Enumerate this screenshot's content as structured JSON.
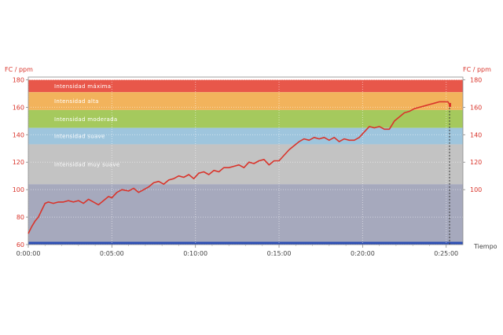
{
  "chart_data": {
    "type": "line",
    "title": "",
    "ylabel_left": "FC / ppm",
    "ylabel_right": "FC / ppm",
    "xlabel": "Tiempo",
    "ylim": [
      60,
      182
    ],
    "xlim_minutes": [
      0,
      26.0
    ],
    "y_ticks_left": [
      60,
      80,
      100,
      120,
      140,
      160,
      180
    ],
    "y_ticks_right": [
      100,
      120,
      140,
      160,
      180
    ],
    "x_ticks": [
      {
        "value": 0,
        "label": "0:00:00"
      },
      {
        "value": 5,
        "label": "0:05:00"
      },
      {
        "value": 10,
        "label": "0:10:00"
      },
      {
        "value": 15,
        "label": "0:15:00"
      },
      {
        "value": 20,
        "label": "0:20:00"
      },
      {
        "value": 25,
        "label": "0:25:00"
      }
    ],
    "grid": true,
    "zones": [
      {
        "label": "Intensidad máxima",
        "from": 171,
        "to": 180,
        "color": "#e8574a"
      },
      {
        "label": "Intensidad alta",
        "from": 158,
        "to": 171,
        "color": "#f2b35c"
      },
      {
        "label": "Intensidad moderada",
        "from": 145,
        "to": 158,
        "color": "#a5c95d"
      },
      {
        "label": "Intensidad suave",
        "from": 133,
        "to": 145,
        "color": "#9ec5dd"
      },
      {
        "label": "Intensidad muy suave",
        "from": 104,
        "to": 133,
        "color": "#c3c3c3"
      },
      {
        "label": "",
        "from": 62,
        "to": 104,
        "color": "#a6a9bd"
      }
    ],
    "series": [
      {
        "color": "#d9342b",
        "x": [
          0,
          0.2,
          0.4,
          0.6,
          0.8,
          1.0,
          1.2,
          1.5,
          1.8,
          2.1,
          2.4,
          2.7,
          3.0,
          3.3,
          3.6,
          3.9,
          4.2,
          4.5,
          4.8,
          5.0,
          5.3,
          5.6,
          6.0,
          6.3,
          6.6,
          6.9,
          7.2,
          7.5,
          7.8,
          8.1,
          8.4,
          8.7,
          9.0,
          9.3,
          9.6,
          9.9,
          10.2,
          10.5,
          10.8,
          11.1,
          11.4,
          11.7,
          12.0,
          12.3,
          12.6,
          12.9,
          13.2,
          13.5,
          13.8,
          14.1,
          14.4,
          14.7,
          15.0,
          15.3,
          15.6,
          15.9,
          16.2,
          16.5,
          16.8,
          17.1,
          17.4,
          17.7,
          18.0,
          18.3,
          18.6,
          18.9,
          19.2,
          19.5,
          19.8,
          20.1,
          20.4,
          20.7,
          21.0,
          21.3,
          21.6,
          21.9,
          22.2,
          22.5,
          22.8,
          23.1,
          23.4,
          23.7,
          24.0,
          24.3,
          24.6,
          24.9,
          25.1,
          25.2
        ],
        "values": [
          68,
          73,
          77,
          80,
          85,
          90,
          91,
          90,
          91,
          91,
          92,
          91,
          92,
          90,
          93,
          91,
          89,
          92,
          95,
          94,
          98,
          100,
          99,
          101,
          98,
          100,
          102,
          105,
          106,
          104,
          107,
          108,
          110,
          109,
          111,
          108,
          112,
          113,
          111,
          114,
          113,
          116,
          116,
          117,
          118,
          116,
          120,
          119,
          121,
          122,
          118,
          121,
          121,
          125,
          129,
          132,
          135,
          137,
          136,
          138,
          137,
          138,
          136,
          138,
          135,
          137,
          136,
          136,
          138,
          142,
          146,
          145,
          146,
          144,
          144,
          150,
          153,
          156,
          157,
          159,
          160,
          161,
          162,
          163,
          164,
          164,
          164,
          162
        ]
      }
    ],
    "marker_line_x": 25.2
  }
}
